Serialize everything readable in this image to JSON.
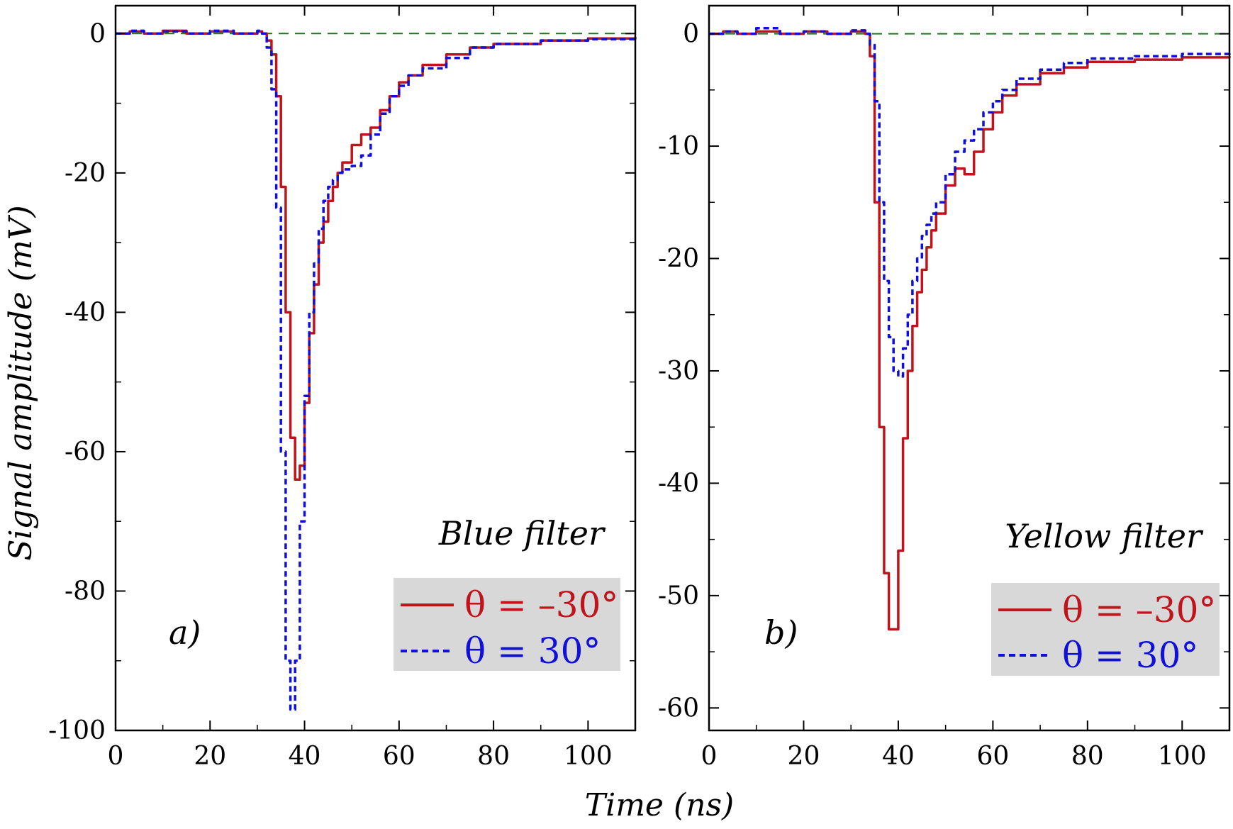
{
  "figure": {
    "xlabel": "Time (ns)",
    "ylabel": "Signal amplitude (mV)"
  },
  "colors": {
    "red_series": "#c0141c",
    "blue_series": "#1010d8",
    "zero_line": "#1a7a1a",
    "legend_bg": "#d8d8d8",
    "axes": "#000000"
  },
  "chart_data": [
    {
      "type": "line",
      "panel_label": "a)",
      "filter_label": "Blue filter",
      "xlabel": "",
      "ylabel": "",
      "xlim": [
        0,
        110
      ],
      "ylim": [
        -100,
        4
      ],
      "xticks": [
        0,
        20,
        40,
        60,
        80,
        100
      ],
      "yticks": [
        0,
        -20,
        -40,
        -60,
        -80,
        -100
      ],
      "reference_line_y": 0,
      "grid": false,
      "legend_position": "bottom-right",
      "legend": [
        {
          "label": "θ = –30°",
          "color": "#c0141c",
          "style": "solid"
        },
        {
          "label": "θ = 30°",
          "color": "#1010d8",
          "style": "dashed"
        }
      ],
      "series": [
        {
          "label": "θ = –30°",
          "color": "#c0141c",
          "style": "solid",
          "x": [
            0,
            3,
            6,
            10,
            15,
            20,
            25,
            30,
            31,
            32,
            33,
            34,
            35,
            36,
            37,
            38,
            39,
            40,
            41,
            42,
            43,
            44,
            45,
            46,
            47,
            48,
            50,
            52,
            54,
            56,
            58,
            60,
            62,
            65,
            70,
            75,
            80,
            90,
            100,
            110
          ],
          "y": [
            0,
            0.3,
            0,
            0.4,
            0,
            0.3,
            0,
            0.3,
            0,
            -1,
            -3,
            -9,
            -22,
            -40,
            -58,
            -64,
            -62,
            -53,
            -43,
            -36,
            -30,
            -27,
            -24,
            -22,
            -20,
            -18.5,
            -16,
            -14.5,
            -13.5,
            -11,
            -9,
            -7,
            -6,
            -4.5,
            -3,
            -2,
            -1.5,
            -1,
            -0.7,
            -0.5
          ]
        },
        {
          "label": "θ = 30°",
          "color": "#1010d8",
          "style": "dashed",
          "x": [
            0,
            3,
            6,
            10,
            15,
            20,
            25,
            30,
            31,
            32,
            33,
            34,
            35,
            36,
            37,
            38,
            39,
            40,
            41,
            42,
            43,
            44,
            45,
            46,
            47,
            48,
            50,
            52,
            54,
            56,
            58,
            60,
            62,
            65,
            70,
            75,
            80,
            90,
            100,
            110
          ],
          "y": [
            0,
            0.4,
            0,
            0.3,
            0,
            0.4,
            0,
            0.4,
            0,
            -2,
            -8,
            -25,
            -60,
            -90,
            -97,
            -90,
            -70,
            -52,
            -40,
            -33,
            -28,
            -24,
            -22,
            -21,
            -20,
            -19.5,
            -19,
            -17.5,
            -14.5,
            -11.5,
            -9,
            -7.5,
            -6,
            -5,
            -3.5,
            -2,
            -1.5,
            -1,
            -0.8,
            -0.6
          ]
        }
      ]
    },
    {
      "type": "line",
      "panel_label": "b)",
      "filter_label": "Yellow filter",
      "xlabel": "",
      "ylabel": "",
      "xlim": [
        0,
        110
      ],
      "ylim": [
        -62,
        2.5
      ],
      "xticks": [
        0,
        20,
        40,
        60,
        80,
        100
      ],
      "yticks": [
        0,
        -10,
        -20,
        -30,
        -40,
        -50,
        -60
      ],
      "reference_line_y": 0,
      "grid": false,
      "legend_position": "bottom-right",
      "legend": [
        {
          "label": "θ = –30°",
          "color": "#c0141c",
          "style": "solid"
        },
        {
          "label": "θ = 30°",
          "color": "#1010d8",
          "style": "dashed"
        }
      ],
      "series": [
        {
          "label": "θ = –30°",
          "color": "#c0141c",
          "style": "solid",
          "x": [
            0,
            3,
            6,
            10,
            15,
            20,
            25,
            30,
            33,
            34,
            35,
            36,
            37,
            38,
            39,
            40,
            41,
            42,
            43,
            44,
            45,
            46,
            47,
            48,
            50,
            52,
            54,
            56,
            58,
            60,
            62,
            65,
            70,
            75,
            80,
            90,
            100,
            110
          ],
          "y": [
            0,
            0.2,
            0,
            0.2,
            0,
            0.2,
            0,
            0.2,
            0,
            -2,
            -15,
            -35,
            -48,
            -53,
            -53,
            -46,
            -36,
            -30,
            -26,
            -23,
            -21,
            -19,
            -17.5,
            -16,
            -13.5,
            -12,
            -12.5,
            -10.5,
            -8.5,
            -7,
            -5.5,
            -4.5,
            -3.5,
            -3,
            -2.5,
            -2.3,
            -2.1,
            -2
          ]
        },
        {
          "label": "θ = 30°",
          "color": "#1010d8",
          "style": "dashed",
          "x": [
            0,
            3,
            6,
            10,
            15,
            20,
            25,
            30,
            33,
            34,
            35,
            36,
            37,
            38,
            39,
            40,
            41,
            42,
            43,
            44,
            45,
            46,
            47,
            48,
            50,
            52,
            54,
            56,
            58,
            60,
            62,
            65,
            70,
            75,
            80,
            90,
            100,
            110
          ],
          "y": [
            0,
            0.2,
            0,
            0.5,
            0,
            0.2,
            0,
            0.3,
            0,
            -1,
            -6,
            -15,
            -22,
            -27,
            -30,
            -30.5,
            -28,
            -25,
            -22,
            -20,
            -18,
            -17,
            -16,
            -15,
            -12.5,
            -10.5,
            -9.5,
            -8.5,
            -7,
            -6,
            -5,
            -4,
            -3.2,
            -2.6,
            -2.2,
            -2,
            -1.8,
            -1.7
          ]
        }
      ]
    }
  ]
}
